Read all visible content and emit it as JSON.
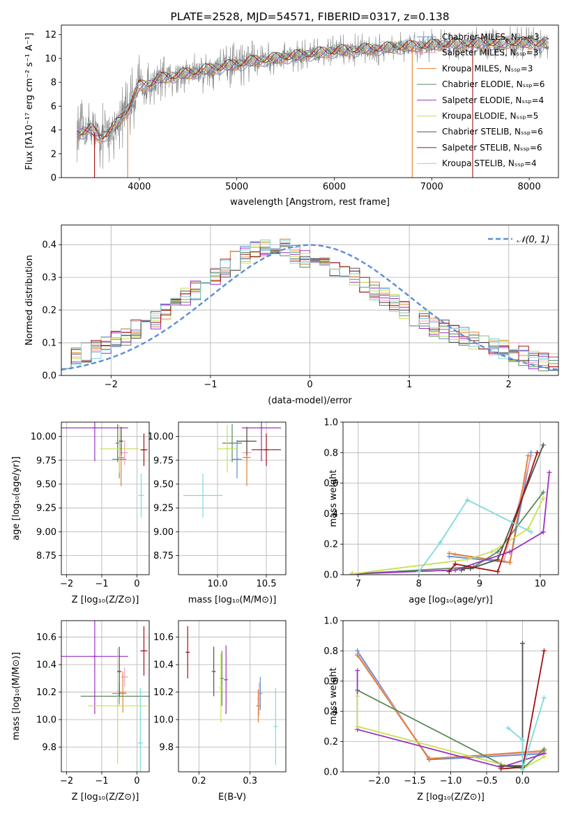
{
  "colors": {
    "chabrier_miles": "#5b8ed6",
    "salpeter_miles": "#f0a0b4",
    "kroupa_miles": "#e08030",
    "chabrier_elodie": "#5a8a5a",
    "salpeter_elodie": "#9b30c0",
    "kroupa_elodie": "#c8e050",
    "chabrier_stelib": "#505050",
    "salpeter_stelib": "#a01010",
    "kroupa_stelib": "#80d8dc",
    "data": "#808080",
    "normal": "#5b8ed6"
  },
  "chart_data": [
    {
      "type": "line",
      "title": "PLATE=2528, MJD=54571, FIBERID=0317, z=0.138",
      "xlabel": "wavelength [Angstrom, rest frame]",
      "ylabel": "Flux [fλ10⁻¹⁷ erg cm⁻² s⁻¹ A⁻¹]",
      "xlim": [
        3200,
        8300
      ],
      "ylim": [
        0,
        12.8
      ],
      "xticks": [
        "4000",
        "5000",
        "6000",
        "7000",
        "8000"
      ],
      "yticks": [
        "0",
        "2",
        "4",
        "6",
        "8",
        "10",
        "12"
      ],
      "legend_position": "top-right",
      "legend": [
        {
          "label": "Chabrier MILES, Nₛₛₚ=3",
          "key": "chabrier_miles"
        },
        {
          "label": "Salpeter MILES, Nₛₛₚ=3",
          "key": "salpeter_miles"
        },
        {
          "label": "Kroupa MILES, Nₛₛₚ=3",
          "key": "kroupa_miles"
        },
        {
          "label": "Chabrier ELODIE, Nₛₛₚ=6",
          "key": "chabrier_elodie"
        },
        {
          "label": "Salpeter ELODIE, Nₛₛₚ=4",
          "key": "salpeter_elodie"
        },
        {
          "label": "Kroupa ELODIE, Nₛₛₚ=5",
          "key": "kroupa_elodie"
        },
        {
          "label": "Chabrier STELIB, Nₛₛₚ=6",
          "key": "chabrier_stelib"
        },
        {
          "label": "Salpeter STELIB, Nₛₛₚ=6",
          "key": "salpeter_stelib"
        },
        {
          "label": "Kroupa STELIB, Nₛₛₚ=4",
          "key": "kroupa_stelib"
        }
      ],
      "continuum": {
        "x": [
          3360,
          3500,
          3600,
          3700,
          3800,
          3900,
          4000,
          4100,
          4200,
          4400,
          4600,
          4800,
          5000,
          5200,
          5400,
          5600,
          5800,
          6000,
          6200,
          6400,
          6600,
          6800,
          7000,
          7200,
          7400,
          7600,
          7800,
          8000,
          8200
        ],
        "y": [
          3.6,
          4.1,
          3.3,
          3.9,
          4.8,
          6.0,
          7.7,
          7.8,
          8.3,
          8.6,
          8.9,
          9.2,
          9.5,
          9.8,
          10.0,
          10.2,
          10.4,
          10.6,
          10.7,
          10.8,
          10.9,
          11.0,
          11.1,
          11.2,
          11.2,
          11.3,
          11.3,
          11.3,
          11.2
        ]
      }
    },
    {
      "type": "histogram",
      "xlabel": "(data-model)/error",
      "ylabel": "Normed distribution",
      "xlim": [
        -2.5,
        2.5
      ],
      "ylim": [
        0,
        0.46
      ],
      "xticks": [
        "−2",
        "−1",
        "0",
        "1",
        "2"
      ],
      "yticks": [
        "0.0",
        "0.1",
        "0.2",
        "0.3",
        "0.4"
      ],
      "legend_label": "𝒩(0, 1)",
      "legend_position": "top-right",
      "bin_width": 0.1,
      "mean_density_by_bin": [
        0.05,
        0.06,
        0.07,
        0.08,
        0.09,
        0.11,
        0.12,
        0.14,
        0.15,
        0.17,
        0.19,
        0.21,
        0.24,
        0.26,
        0.28,
        0.3,
        0.33,
        0.35,
        0.37,
        0.38,
        0.39,
        0.38,
        0.39,
        0.37,
        0.36,
        0.35,
        0.34,
        0.33,
        0.32,
        0.3,
        0.28,
        0.26,
        0.24,
        0.22,
        0.2,
        0.18,
        0.17,
        0.15,
        0.14,
        0.13,
        0.12,
        0.11,
        0.1,
        0.09,
        0.08,
        0.07,
        0.06,
        0.05,
        0.04,
        0.04
      ]
    },
    {
      "type": "scatter",
      "xlabel": "Z [log₁₀(Z/Z⊙)]",
      "ylabel": "age  [log₁₀(age/yr)]",
      "xlim": [
        -2.15,
        0.35
      ],
      "ylim": [
        8.55,
        10.15
      ],
      "xticks": [
        "−2",
        "−1",
        "0"
      ],
      "yticks": [
        "8.75",
        "9.00",
        "9.25",
        "9.50",
        "9.75",
        "10.00"
      ],
      "points": [
        {
          "key": "chabrier_miles",
          "x": -0.5,
          "y": 9.76,
          "xerr": 0.2,
          "yerr": 0.2
        },
        {
          "key": "salpeter_miles",
          "x": -0.35,
          "y": 9.83,
          "xerr": 0.1,
          "yerr": 0.13
        },
        {
          "key": "kroupa_miles",
          "x": -0.45,
          "y": 9.78,
          "xerr": 0.1,
          "yerr": 0.3
        },
        {
          "key": "chabrier_elodie",
          "x": -0.55,
          "y": 9.93,
          "xerr": 0.05,
          "yerr": 0.2
        },
        {
          "key": "salpeter_elodie",
          "x": -1.2,
          "y": 10.09,
          "xerr": 0.95,
          "yerr": 0.35
        },
        {
          "key": "kroupa_elodie",
          "x": -0.5,
          "y": 9.87,
          "xerr": 0.55,
          "yerr": 0.25
        },
        {
          "key": "chabrier_stelib",
          "x": -0.45,
          "y": 9.95,
          "xerr": 0.05,
          "yerr": 0.15
        },
        {
          "key": "salpeter_stelib",
          "x": 0.2,
          "y": 9.86,
          "xerr": 0.1,
          "yerr": 0.17
        },
        {
          "key": "kroupa_stelib",
          "x": 0.12,
          "y": 9.38,
          "xerr": 0.08,
          "yerr": 0.23
        }
      ]
    },
    {
      "type": "scatter",
      "xlabel": "mass [log₁₀(M/M⊙)]",
      "xlim": [
        9.6,
        10.7
      ],
      "ylim": [
        8.55,
        10.15
      ],
      "xticks": [
        "10.0",
        "10.5"
      ],
      "yticks": [
        "8.75",
        "9.00",
        "9.25",
        "9.50",
        "9.75",
        "10.00"
      ],
      "points": [
        {
          "key": "chabrier_miles",
          "x": 10.2,
          "y": 9.76,
          "xerr": 0.05,
          "yerr": 0.2
        },
        {
          "key": "salpeter_miles",
          "x": 10.3,
          "y": 9.83,
          "xerr": 0.05,
          "yerr": 0.13
        },
        {
          "key": "kroupa_miles",
          "x": 10.3,
          "y": 9.78,
          "xerr": 0.04,
          "yerr": 0.3
        },
        {
          "key": "chabrier_elodie",
          "x": 10.15,
          "y": 9.93,
          "xerr": 0.1,
          "yerr": 0.2
        },
        {
          "key": "salpeter_elodie",
          "x": 10.45,
          "y": 10.09,
          "xerr": 0.2,
          "yerr": 0.35
        },
        {
          "key": "kroupa_elodie",
          "x": 10.1,
          "y": 9.87,
          "xerr": 0.1,
          "yerr": 0.25
        },
        {
          "key": "chabrier_stelib",
          "x": 10.3,
          "y": 9.95,
          "xerr": 0.1,
          "yerr": 0.15
        },
        {
          "key": "salpeter_stelib",
          "x": 10.5,
          "y": 9.86,
          "xerr": 0.15,
          "yerr": 0.17
        },
        {
          "key": "kroupa_stelib",
          "x": 9.85,
          "y": 9.38,
          "xerr": 0.2,
          "yerr": 0.23
        }
      ]
    },
    {
      "type": "line",
      "xlabel": "age  [log₁₀(age/yr)]",
      "ylabel": "mass weight",
      "xlim": [
        6.75,
        10.3
      ],
      "ylim": [
        0,
        1.0
      ],
      "xticks": [
        "7",
        "8",
        "9",
        "10"
      ],
      "yticks": [
        "0.0",
        "0.2",
        "0.4",
        "0.6",
        "0.8",
        "1.0"
      ],
      "series": [
        {
          "key": "chabrier_miles",
          "x": [
            8.5,
            9.5,
            9.85
          ],
          "y": [
            0.12,
            0.08,
            0.8
          ]
        },
        {
          "key": "salpeter_miles",
          "x": [
            8.6,
            9.4,
            9.85
          ],
          "y": [
            0.13,
            0.09,
            0.78
          ]
        },
        {
          "key": "kroupa_miles",
          "x": [
            8.5,
            9.5,
            9.8
          ],
          "y": [
            0.14,
            0.08,
            0.78
          ]
        },
        {
          "key": "chabrier_elodie",
          "x": [
            6.9,
            8.9,
            9.3,
            10.05
          ],
          "y": [
            0.005,
            0.05,
            0.15,
            0.54
          ]
        },
        {
          "key": "salpeter_elodie",
          "x": [
            6.9,
            8.6,
            9.5,
            10.05,
            10.15
          ],
          "y": [
            0.005,
            0.03,
            0.15,
            0.28,
            0.67
          ]
        },
        {
          "key": "kroupa_elodie",
          "x": [
            6.9,
            8.8,
            9.2,
            9.8,
            10.05
          ],
          "y": [
            0.005,
            0.1,
            0.15,
            0.3,
            0.5
          ]
        },
        {
          "key": "chabrier_stelib",
          "x": [
            8.7,
            8.75,
            8.85,
            9.3,
            10.05
          ],
          "y": [
            0.03,
            0.04,
            0.04,
            0.1,
            0.85
          ]
        },
        {
          "key": "salpeter_stelib",
          "x": [
            8.5,
            8.6,
            9.3,
            9.95
          ],
          "y": [
            0.02,
            0.07,
            0.02,
            0.8
          ]
        },
        {
          "key": "kroupa_stelib",
          "x": [
            8.0,
            8.35,
            8.8,
            9.85
          ],
          "y": [
            0.02,
            0.21,
            0.49,
            0.28
          ]
        }
      ]
    },
    {
      "type": "scatter",
      "xlabel": "Z [log₁₀(Z/Z⊙)]",
      "ylabel": "mass [log₁₀(M/M⊙)]",
      "xlim": [
        -2.15,
        0.35
      ],
      "ylim": [
        9.62,
        10.72
      ],
      "xticks": [
        "−2",
        "−1",
        "0"
      ],
      "yticks": [
        "9.8",
        "10.0",
        "10.2",
        "10.4",
        "10.6"
      ],
      "points": [
        {
          "key": "chabrier_miles",
          "x": -0.5,
          "y": 10.19,
          "xerr": 0.2,
          "yerr": 0.08
        },
        {
          "key": "salpeter_miles",
          "x": -0.35,
          "y": 10.31,
          "xerr": 0.1,
          "yerr": 0.07
        },
        {
          "key": "kroupa_miles",
          "x": -0.4,
          "y": 10.2,
          "xerr": 0.1,
          "yerr": 0.15
        },
        {
          "key": "chabrier_elodie",
          "x": -0.55,
          "y": 10.17,
          "xerr": 1.05,
          "yerr": 0.05
        },
        {
          "key": "salpeter_elodie",
          "x": -1.2,
          "y": 10.46,
          "xerr": 0.95,
          "yerr": 0.42
        },
        {
          "key": "kroupa_elodie",
          "x": -0.55,
          "y": 10.1,
          "xerr": 0.85,
          "yerr": 0.42
        },
        {
          "key": "chabrier_stelib",
          "x": -0.5,
          "y": 10.35,
          "xerr": 0.05,
          "yerr": 0.18
        },
        {
          "key": "salpeter_stelib",
          "x": 0.2,
          "y": 10.5,
          "xerr": 0.1,
          "yerr": 0.18
        },
        {
          "key": "kroupa_stelib",
          "x": 0.1,
          "y": 9.83,
          "xerr": 0.07,
          "yerr": 0.4
        }
      ]
    },
    {
      "type": "scatter",
      "xlabel": "E(B-V)",
      "xlim": [
        0.16,
        0.37
      ],
      "ylim": [
        9.62,
        10.72
      ],
      "xticks": [
        "0.2",
        "0.3"
      ],
      "yticks": [
        "9.8",
        "10.0",
        "10.2",
        "10.4",
        "10.6"
      ],
      "points": [
        {
          "key": "chabrier_miles",
          "x": 0.32,
          "y": 10.19,
          "xerr": 0,
          "yerr": 0.12
        },
        {
          "key": "salpeter_miles",
          "x": 0.318,
          "y": 10.15,
          "xerr": 0,
          "yerr": 0.12
        },
        {
          "key": "kroupa_miles",
          "x": 0.316,
          "y": 10.1,
          "xerr": 0,
          "yerr": 0.12
        },
        {
          "key": "chabrier_elodie",
          "x": 0.245,
          "y": 10.3,
          "xerr": 0,
          "yerr": 0.2
        },
        {
          "key": "salpeter_elodie",
          "x": 0.253,
          "y": 10.29,
          "xerr": 0,
          "yerr": 0.25
        },
        {
          "key": "kroupa_elodie",
          "x": 0.243,
          "y": 10.23,
          "xerr": 0,
          "yerr": 0.25
        },
        {
          "key": "chabrier_stelib",
          "x": 0.229,
          "y": 10.35,
          "xerr": 0,
          "yerr": 0.18
        },
        {
          "key": "salpeter_stelib",
          "x": 0.178,
          "y": 10.49,
          "xerr": 0,
          "yerr": 0.19
        },
        {
          "key": "kroupa_stelib",
          "x": 0.35,
          "y": 9.95,
          "xerr": 0,
          "yerr": 0.28
        }
      ]
    },
    {
      "type": "line",
      "xlabel": "Z [log₁₀(Z/Z⊙)]",
      "ylabel": "mass weight",
      "xlim": [
        -2.5,
        0.5
      ],
      "ylim": [
        0,
        1.0
      ],
      "xticks": [
        "−2.0",
        "−1.5",
        "−1.0",
        "−0.5",
        "0.0"
      ],
      "yticks": [
        "0.0",
        "0.2",
        "0.4",
        "0.6",
        "0.8",
        "1.0"
      ],
      "series": [
        {
          "key": "chabrier_miles",
          "x": [
            -2.3,
            -1.3,
            0.3
          ],
          "y": [
            0.8,
            0.08,
            0.12
          ]
        },
        {
          "key": "salpeter_miles",
          "x": [
            -2.3,
            -1.3,
            0.3
          ],
          "y": [
            0.78,
            0.09,
            0.13
          ]
        },
        {
          "key": "kroupa_miles",
          "x": [
            -2.3,
            -1.3,
            0.3
          ],
          "y": [
            0.77,
            0.085,
            0.14
          ]
        },
        {
          "key": "chabrier_elodie",
          "x": [
            -2.3,
            -0.3,
            0.0,
            0.3
          ],
          "y": [
            0.54,
            0.05,
            0.02,
            0.15
          ]
        },
        {
          "key": "salpeter_elodie",
          "x": [
            -2.3,
            -2.3,
            -0.3,
            0.3
          ],
          "y": [
            0.67,
            0.28,
            0.03,
            0.12
          ]
        },
        {
          "key": "kroupa_elodie",
          "x": [
            -2.3,
            -2.3,
            -0.3,
            0.0,
            0.3
          ],
          "y": [
            0.5,
            0.3,
            0.05,
            0.02,
            0.1
          ]
        },
        {
          "key": "chabrier_stelib",
          "x": [
            0.0,
            0.0,
            -0.3,
            0.0
          ],
          "y": [
            0.85,
            0.03,
            0.04,
            0.04
          ]
        },
        {
          "key": "salpeter_stelib",
          "x": [
            -0.3,
            0.0,
            0.0,
            0.3
          ],
          "y": [
            0.02,
            0.03,
            0.02,
            0.8
          ]
        },
        {
          "key": "kroupa_stelib",
          "x": [
            -0.2,
            0.0,
            0.0,
            0.3
          ],
          "y": [
            0.29,
            0.21,
            0.02,
            0.49
          ]
        }
      ]
    }
  ]
}
